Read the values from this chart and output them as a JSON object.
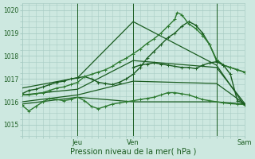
{
  "background_color": "#cde8e0",
  "grid_color": "#a8ccc4",
  "line_dark": "#1a5c20",
  "line_mid": "#2d7a30",
  "xlabel": "Pression niveau de la mer( hPa )",
  "xlabel_fontsize": 7,
  "ytick_vals": [
    1015,
    1016,
    1017,
    1018,
    1019,
    1020
  ],
  "ylim": [
    1014.6,
    1020.3
  ],
  "xlim": [
    0,
    96
  ],
  "xtick_positions": [
    0,
    24,
    48,
    72,
    96
  ],
  "xtick_labels": [
    "",
    "Jeu",
    "Ven",
    "",
    "Sam"
  ],
  "vlines": [
    24,
    48,
    84
  ],
  "series": [
    {
      "x": [
        0,
        24,
        48,
        84,
        96
      ],
      "y": [
        1015.9,
        1016.2,
        1016.0,
        1016.0,
        1015.9
      ],
      "marker": null,
      "markersize": 0,
      "linewidth": 0.9,
      "color": "#1a5c20"
    },
    {
      "x": [
        0,
        24,
        48,
        84,
        96
      ],
      "y": [
        1016.6,
        1017.05,
        1019.5,
        1017.6,
        1015.85
      ],
      "marker": null,
      "markersize": 0,
      "linewidth": 0.9,
      "color": "#1a5c20"
    },
    {
      "x": [
        0,
        24,
        48,
        84,
        96
      ],
      "y": [
        1016.3,
        1016.55,
        1017.8,
        1017.5,
        1015.95
      ],
      "marker": null,
      "markersize": 0,
      "linewidth": 0.9,
      "color": "#1a5c20"
    },
    {
      "x": [
        0,
        24,
        48,
        84,
        96
      ],
      "y": [
        1016.0,
        1016.3,
        1016.9,
        1016.8,
        1015.92
      ],
      "marker": null,
      "markersize": 0,
      "linewidth": 0.9,
      "color": "#1a5c20"
    },
    {
      "x": [
        0,
        3,
        6,
        9,
        12,
        15,
        18,
        21,
        24,
        27,
        30,
        33,
        36,
        39,
        42,
        45,
        48,
        51,
        54,
        57,
        60,
        63,
        66,
        69,
        72,
        75,
        78,
        81,
        84,
        87,
        90,
        93,
        96
      ],
      "y": [
        1015.85,
        1015.6,
        1015.8,
        1016.0,
        1016.15,
        1016.1,
        1016.05,
        1016.1,
        1016.2,
        1016.05,
        1015.8,
        1015.7,
        1015.8,
        1015.9,
        1015.95,
        1016.0,
        1016.05,
        1016.1,
        1016.15,
        1016.2,
        1016.3,
        1016.4,
        1016.4,
        1016.35,
        1016.3,
        1016.2,
        1016.1,
        1016.05,
        1016.0,
        1015.95,
        1015.92,
        1015.9,
        1015.88
      ],
      "marker": "+",
      "markersize": 3,
      "linewidth": 1.0,
      "color": "#2d7a30"
    },
    {
      "x": [
        0,
        3,
        6,
        9,
        12,
        15,
        18,
        21,
        24,
        27,
        30,
        33,
        36,
        39,
        42,
        45,
        48,
        51,
        54,
        57,
        60,
        63,
        66,
        69,
        72,
        75,
        78,
        81,
        84,
        87,
        90,
        93,
        96
      ],
      "y": [
        1016.35,
        1016.5,
        1016.55,
        1016.65,
        1016.75,
        1016.85,
        1016.9,
        1017.0,
        1017.05,
        1017.1,
        1017.0,
        1016.85,
        1016.8,
        1016.75,
        1016.85,
        1017.0,
        1017.2,
        1017.5,
        1017.9,
        1018.2,
        1018.5,
        1018.8,
        1019.0,
        1019.3,
        1019.5,
        1019.35,
        1019.0,
        1018.5,
        1017.8,
        1017.6,
        1017.5,
        1017.4,
        1017.3
      ],
      "marker": "+",
      "markersize": 3,
      "linewidth": 1.0,
      "color": "#1a5c20"
    },
    {
      "x": [
        0,
        3,
        6,
        9,
        12,
        15,
        18,
        21,
        24,
        27,
        30,
        33,
        36,
        39,
        42,
        45,
        48,
        51,
        54,
        57,
        60,
        63,
        66,
        67,
        69,
        72,
        75,
        78,
        81,
        84,
        87,
        90,
        93,
        96
      ],
      "y": [
        1016.3,
        1016.3,
        1016.35,
        1016.4,
        1016.5,
        1016.6,
        1016.65,
        1016.75,
        1016.85,
        1017.1,
        1017.2,
        1017.3,
        1017.4,
        1017.55,
        1017.75,
        1017.9,
        1018.1,
        1018.3,
        1018.55,
        1018.75,
        1019.0,
        1019.3,
        1019.6,
        1019.9,
        1019.8,
        1019.4,
        1019.2,
        1018.9,
        1018.5,
        1017.85,
        1017.6,
        1017.5,
        1017.4,
        1017.3
      ],
      "marker": "+",
      "markersize": 3,
      "linewidth": 1.0,
      "color": "#2d7a30"
    },
    {
      "x": [
        48,
        51,
        54,
        57,
        60,
        63,
        66,
        69,
        72,
        75,
        78,
        81,
        84,
        87,
        90,
        93,
        96
      ],
      "y": [
        1017.5,
        1017.6,
        1017.65,
        1017.7,
        1017.65,
        1017.6,
        1017.55,
        1017.5,
        1017.5,
        1017.45,
        1017.6,
        1017.7,
        1017.75,
        1017.6,
        1017.2,
        1016.05,
        1015.9
      ],
      "marker": "+",
      "markersize": 3,
      "linewidth": 1.0,
      "color": "#1a5c20"
    }
  ]
}
